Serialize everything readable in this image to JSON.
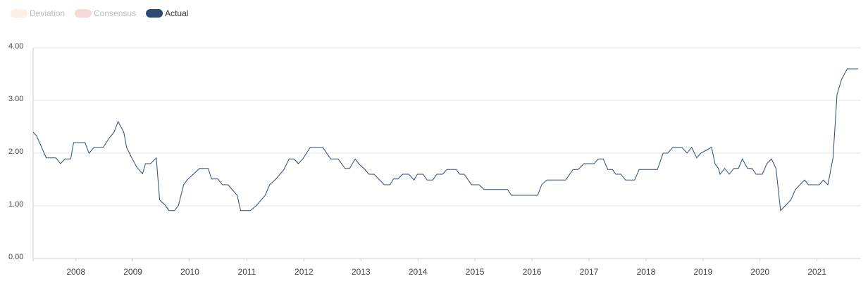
{
  "chart_data": {
    "type": "line",
    "legend": [
      {
        "name": "Deviation",
        "color": "#fcefe3",
        "enabled": false
      },
      {
        "name": "Consensus",
        "color": "#f7d9d9",
        "enabled": false
      },
      {
        "name": "Actual",
        "color": "#2e4a72",
        "enabled": true
      }
    ],
    "x": [
      2007.25,
      2007.31,
      2007.48,
      2007.65,
      2007.73,
      2007.81,
      2007.91,
      2007.96,
      2008.16,
      2008.23,
      2008.32,
      2008.48,
      2008.58,
      2008.67,
      2008.74,
      2008.84,
      2008.89,
      2008.98,
      2009.07,
      2009.17,
      2009.22,
      2009.31,
      2009.41,
      2009.47,
      2009.57,
      2009.63,
      2009.73,
      2009.8,
      2009.89,
      2009.95,
      2010.06,
      2010.17,
      2010.32,
      2010.38,
      2010.49,
      2010.57,
      2010.67,
      2010.74,
      2010.83,
      2010.89,
      2011.06,
      2011.17,
      2011.32,
      2011.4,
      2011.51,
      2011.65,
      2011.74,
      2011.83,
      2011.9,
      2011.98,
      2012.11,
      2012.33,
      2012.47,
      2012.6,
      2012.72,
      2012.8,
      2012.9,
      2012.96,
      2013.07,
      2013.14,
      2013.23,
      2013.41,
      2013.51,
      2013.57,
      2013.65,
      2013.73,
      2013.84,
      2013.93,
      2013.99,
      2014.09,
      2014.16,
      2014.26,
      2014.33,
      2014.43,
      2014.51,
      2014.67,
      2014.73,
      2014.81,
      2014.94,
      2015.07,
      2015.16,
      2015.57,
      2015.64,
      2016.1,
      2016.17,
      2016.26,
      2016.59,
      2016.72,
      2016.81,
      2016.91,
      2017.09,
      2017.16,
      2017.25,
      2017.33,
      2017.41,
      2017.47,
      2017.56,
      2017.64,
      2017.8,
      2017.88,
      2018.2,
      2018.3,
      2018.38,
      2018.47,
      2018.63,
      2018.72,
      2018.8,
      2018.89,
      2018.96,
      2019.15,
      2019.21,
      2019.27,
      2019.3,
      2019.38,
      2019.46,
      2019.54,
      2019.62,
      2019.69,
      2019.78,
      2019.86,
      2019.93,
      2020.04,
      2020.12,
      2020.2,
      2020.28,
      2020.36,
      2020.54,
      2020.62,
      2020.78,
      2020.85,
      2021.04,
      2021.11,
      2021.19,
      2021.28,
      2021.35,
      2021.43,
      2021.53,
      2021.72
    ],
    "series": [
      {
        "name": "Actual",
        "color": "#2e4a72",
        "values": [
          2.4,
          2.33,
          1.91,
          1.91,
          1.8,
          1.89,
          1.89,
          2.2,
          2.2,
          2.0,
          2.11,
          2.11,
          2.28,
          2.4,
          2.6,
          2.4,
          2.11,
          1.91,
          1.73,
          1.61,
          1.8,
          1.8,
          1.91,
          1.11,
          1.01,
          0.91,
          0.91,
          1.01,
          1.4,
          1.49,
          1.6,
          1.71,
          1.71,
          1.51,
          1.51,
          1.4,
          1.4,
          1.31,
          1.2,
          0.91,
          0.91,
          1.01,
          1.2,
          1.4,
          1.51,
          1.69,
          1.89,
          1.89,
          1.8,
          1.89,
          2.11,
          2.11,
          1.89,
          1.89,
          1.71,
          1.71,
          1.89,
          1.8,
          1.69,
          1.6,
          1.6,
          1.4,
          1.4,
          1.51,
          1.51,
          1.6,
          1.6,
          1.49,
          1.6,
          1.6,
          1.49,
          1.49,
          1.6,
          1.6,
          1.69,
          1.69,
          1.6,
          1.6,
          1.4,
          1.4,
          1.31,
          1.31,
          1.2,
          1.2,
          1.4,
          1.49,
          1.49,
          1.69,
          1.69,
          1.8,
          1.8,
          1.89,
          1.89,
          1.69,
          1.69,
          1.6,
          1.6,
          1.49,
          1.49,
          1.69,
          1.69,
          2.0,
          2.0,
          2.11,
          2.11,
          2.0,
          2.11,
          1.91,
          2.0,
          2.11,
          1.8,
          1.71,
          1.6,
          1.71,
          1.6,
          1.71,
          1.71,
          1.89,
          1.71,
          1.71,
          1.6,
          1.6,
          1.8,
          1.89,
          1.71,
          0.91,
          1.11,
          1.31,
          1.49,
          1.4,
          1.4,
          1.49,
          1.4,
          1.91,
          3.11,
          3.4,
          3.6,
          3.6
        ]
      }
    ],
    "xlim": [
      2007.25,
      2021.77
    ],
    "xticks": [
      2008,
      2009,
      2010,
      2011,
      2012,
      2013,
      2014,
      2015,
      2016,
      2017,
      2018,
      2019,
      2020,
      2021
    ],
    "ylim": [
      0,
      4
    ],
    "yticks": [
      {
        "value": 0,
        "label": "0.00"
      },
      {
        "value": 1,
        "label": "1.00"
      },
      {
        "value": 2,
        "label": "2.00"
      },
      {
        "value": 3,
        "label": "3.00"
      },
      {
        "value": 4,
        "label": "4.00"
      }
    ],
    "grid": true
  }
}
